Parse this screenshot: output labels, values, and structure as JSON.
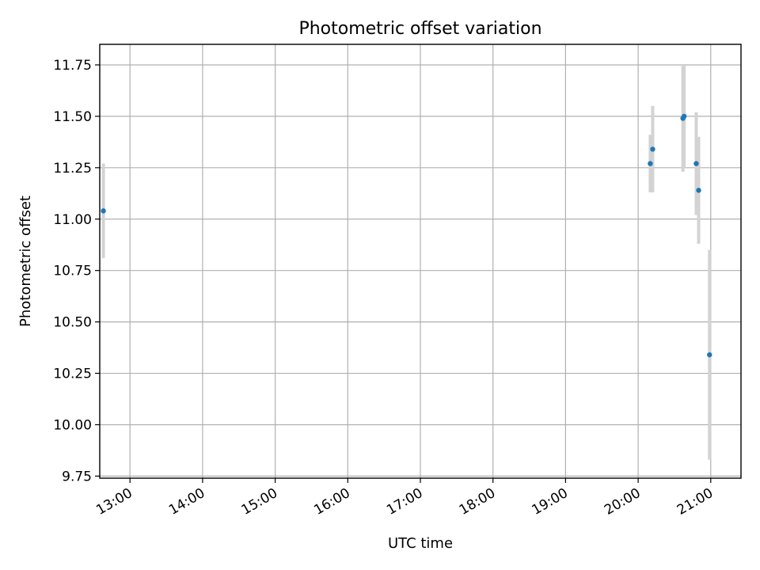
{
  "chart_data": {
    "type": "scatter",
    "title": "Photometric offset variation",
    "xlabel": "UTC time",
    "ylabel": "Photometric offset",
    "x_range": [
      "12:35",
      "21:25"
    ],
    "ylim": [
      9.74,
      11.85
    ],
    "x_ticks": [
      "13:00",
      "14:00",
      "15:00",
      "16:00",
      "17:00",
      "18:00",
      "19:00",
      "20:00",
      "21:00"
    ],
    "y_ticks": [
      "9.75",
      "10.00",
      "10.25",
      "10.50",
      "10.75",
      "11.00",
      "11.25",
      "11.50",
      "11.75"
    ],
    "grid": true,
    "point_color": "#1f77b4",
    "errorbar_color": "#d3d3d3",
    "points": [
      {
        "time": "12:38",
        "y": 11.04,
        "err": 0.23
      },
      {
        "time": "20:10",
        "y": 11.27,
        "err": 0.14
      },
      {
        "time": "20:12",
        "y": 11.34,
        "err": 0.21
      },
      {
        "time": "20:37",
        "y": 11.49,
        "err": 0.26
      },
      {
        "time": "20:38",
        "y": 11.5,
        "err": 0.25
      },
      {
        "time": "20:48",
        "y": 11.27,
        "err": 0.25
      },
      {
        "time": "20:50",
        "y": 11.14,
        "err": 0.26
      },
      {
        "time": "20:59",
        "y": 10.34,
        "err": 0.51
      }
    ]
  }
}
